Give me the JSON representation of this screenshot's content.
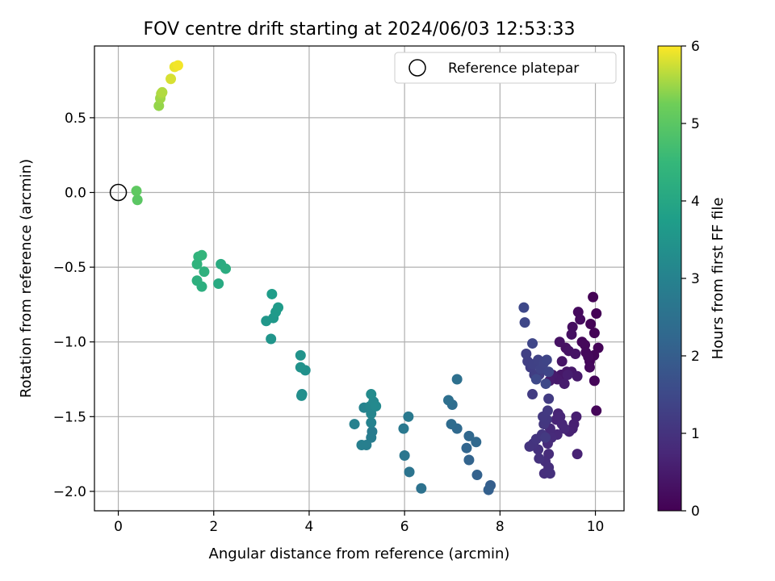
{
  "chart_data": {
    "type": "scatter",
    "title": "FOV centre drift starting at 2024/06/03 12:53:33",
    "xlabel": "Angular distance from reference (arcmin)",
    "ylabel": "Rotation from reference (arcmin)",
    "colorbar_label": "Hours from first FF file",
    "xlim": [
      -0.5,
      10.6
    ],
    "ylim": [
      -2.13,
      0.98
    ],
    "x_ticks": [
      0,
      2,
      4,
      6,
      8,
      10
    ],
    "x_tick_labels": [
      "0",
      "2",
      "4",
      "6",
      "8",
      "10"
    ],
    "y_ticks": [
      0.5,
      0.0,
      -0.5,
      -1.0,
      -1.5,
      -2.0
    ],
    "y_tick_labels": [
      "0.5",
      "0.0",
      "−0.5",
      "−1.0",
      "−1.5",
      "−2.0"
    ],
    "colorbar_range": [
      0,
      6
    ],
    "colorbar_ticks": [
      0,
      1,
      2,
      3,
      4,
      5,
      6
    ],
    "colorbar_tick_labels": [
      "0",
      "1",
      "2",
      "3",
      "4",
      "5",
      "6"
    ],
    "colormap": "viridis",
    "grid": true,
    "legend": {
      "position": "upper-right",
      "entries": [
        "Reference platepar"
      ]
    },
    "reference_point": {
      "x": 0.0,
      "y": 0.0,
      "label": "Reference platepar"
    },
    "points": [
      [
        9.95,
        -0.7,
        0.03
      ],
      [
        10.02,
        -0.81,
        0.04
      ],
      [
        9.9,
        -0.88,
        0.05
      ],
      [
        9.98,
        -0.94,
        0.05
      ],
      [
        10.06,
        -1.04,
        0.06
      ],
      [
        9.97,
        -1.09,
        0.07
      ],
      [
        9.88,
        -1.13,
        0.08
      ],
      [
        9.98,
        -1.26,
        0.09
      ],
      [
        10.02,
        -1.46,
        0.1
      ],
      [
        9.72,
        -1.0,
        0.12
      ],
      [
        9.78,
        -1.02,
        0.13
      ],
      [
        9.8,
        -1.07,
        0.14
      ],
      [
        9.85,
        -1.1,
        0.15
      ],
      [
        9.88,
        -1.17,
        0.16
      ],
      [
        9.64,
        -0.8,
        0.18
      ],
      [
        9.68,
        -0.85,
        0.2
      ],
      [
        9.52,
        -0.9,
        0.25
      ],
      [
        9.5,
        -0.95,
        0.28
      ],
      [
        9.38,
        -1.04,
        0.3
      ],
      [
        9.25,
        -1.0,
        0.32
      ],
      [
        9.44,
        -1.06,
        0.34
      ],
      [
        9.58,
        -1.08,
        0.36
      ],
      [
        9.3,
        -1.13,
        0.38
      ],
      [
        9.4,
        -1.2,
        0.4
      ],
      [
        9.28,
        -1.22,
        0.42
      ],
      [
        9.5,
        -1.2,
        0.44
      ],
      [
        9.62,
        -1.23,
        0.46
      ],
      [
        9.2,
        -1.25,
        0.48
      ],
      [
        9.1,
        -1.22,
        0.5
      ],
      [
        9.04,
        -1.26,
        0.52
      ],
      [
        9.35,
        -1.28,
        0.54
      ],
      [
        9.42,
        -1.22,
        0.56
      ],
      [
        9.6,
        -1.5,
        0.58
      ],
      [
        9.55,
        -1.55,
        0.6
      ],
      [
        9.52,
        -1.58,
        0.62
      ],
      [
        9.45,
        -1.6,
        0.64
      ],
      [
        9.62,
        -1.75,
        0.66
      ],
      [
        9.22,
        -1.48,
        0.68
      ],
      [
        9.18,
        -1.52,
        0.7
      ],
      [
        9.26,
        -1.5,
        0.72
      ],
      [
        9.3,
        -1.55,
        0.74
      ],
      [
        9.35,
        -1.58,
        0.76
      ],
      [
        9.2,
        -1.62,
        0.78
      ],
      [
        9.05,
        -1.58,
        0.8
      ],
      [
        9.08,
        -1.64,
        0.82
      ],
      [
        9.0,
        -1.68,
        0.84
      ],
      [
        9.02,
        -1.75,
        0.86
      ],
      [
        8.95,
        -1.8,
        0.88
      ],
      [
        9.02,
        -1.84,
        0.9
      ],
      [
        8.93,
        -1.88,
        0.92
      ],
      [
        9.05,
        -1.88,
        0.94
      ],
      [
        8.8,
        -1.72,
        0.96
      ],
      [
        8.82,
        -1.78,
        0.98
      ],
      [
        8.7,
        -1.68,
        1.0
      ],
      [
        8.62,
        -1.7,
        1.02
      ],
      [
        8.76,
        -1.65,
        1.04
      ],
      [
        8.88,
        -1.62,
        1.06
      ],
      [
        8.92,
        -1.55,
        1.08
      ],
      [
        8.98,
        -1.52,
        1.1
      ],
      [
        8.9,
        -1.5,
        1.12
      ],
      [
        9.0,
        -1.46,
        1.14
      ],
      [
        8.95,
        -1.64,
        1.16
      ],
      [
        9.02,
        -1.38,
        1.18
      ],
      [
        8.68,
        -1.35,
        1.2
      ],
      [
        8.82,
        -1.22,
        1.22
      ],
      [
        8.72,
        -1.22,
        1.24
      ],
      [
        8.64,
        -1.17,
        1.26
      ],
      [
        8.58,
        -1.13,
        1.28
      ],
      [
        8.55,
        -1.08,
        1.3
      ],
      [
        8.7,
        -1.15,
        1.32
      ],
      [
        8.8,
        -1.12,
        1.34
      ],
      [
        8.85,
        -1.18,
        1.36
      ],
      [
        8.92,
        -1.14,
        1.38
      ],
      [
        8.98,
        -1.12,
        1.4
      ],
      [
        9.02,
        -1.2,
        1.42
      ],
      [
        8.68,
        -1.01,
        1.44
      ],
      [
        8.52,
        -0.87,
        1.46
      ],
      [
        8.5,
        -0.77,
        1.48
      ],
      [
        8.76,
        -1.25,
        1.5
      ],
      [
        8.96,
        -1.28,
        1.52
      ],
      [
        7.8,
        -1.96,
        2.0
      ],
      [
        7.76,
        -1.99,
        2.05
      ],
      [
        7.52,
        -1.89,
        2.1
      ],
      [
        7.35,
        -1.79,
        2.15
      ],
      [
        7.3,
        -1.71,
        2.2
      ],
      [
        7.35,
        -1.63,
        2.25
      ],
      [
        7.5,
        -1.67,
        2.28
      ],
      [
        7.1,
        -1.58,
        2.32
      ],
      [
        6.98,
        -1.55,
        2.36
      ],
      [
        7.0,
        -1.42,
        2.4
      ],
      [
        6.92,
        -1.39,
        2.44
      ],
      [
        7.1,
        -1.25,
        2.48
      ],
      [
        6.35,
        -1.98,
        2.55
      ],
      [
        6.1,
        -1.87,
        2.6
      ],
      [
        6.0,
        -1.76,
        2.65
      ],
      [
        5.98,
        -1.58,
        2.7
      ],
      [
        6.08,
        -1.5,
        2.75
      ],
      [
        5.32,
        -1.6,
        2.8
      ],
      [
        5.3,
        -1.64,
        2.84
      ],
      [
        5.2,
        -1.69,
        2.88
      ],
      [
        5.1,
        -1.69,
        2.92
      ],
      [
        4.95,
        -1.55,
        2.96
      ],
      [
        5.3,
        -1.54,
        3.0
      ],
      [
        5.15,
        -1.44,
        3.04
      ],
      [
        5.3,
        -1.48,
        3.08
      ],
      [
        5.28,
        -1.43,
        3.12
      ],
      [
        5.35,
        -1.4,
        3.16
      ],
      [
        5.4,
        -1.43,
        3.2
      ],
      [
        5.3,
        -1.35,
        3.24
      ],
      [
        3.85,
        -1.35,
        3.3
      ],
      [
        3.84,
        -1.36,
        3.34
      ],
      [
        3.92,
        -1.19,
        3.38
      ],
      [
        3.82,
        -1.17,
        3.42
      ],
      [
        3.82,
        -1.09,
        3.46
      ],
      [
        3.2,
        -0.98,
        3.52
      ],
      [
        3.1,
        -0.86,
        3.56
      ],
      [
        3.25,
        -0.84,
        3.6
      ],
      [
        3.3,
        -0.8,
        3.64
      ],
      [
        3.35,
        -0.77,
        3.68
      ],
      [
        3.22,
        -0.68,
        3.72
      ],
      [
        2.1,
        -0.61,
        4.1
      ],
      [
        2.15,
        -0.48,
        4.14
      ],
      [
        2.25,
        -0.51,
        4.18
      ],
      [
        1.75,
        -0.63,
        4.22
      ],
      [
        1.65,
        -0.59,
        4.26
      ],
      [
        1.8,
        -0.53,
        4.3
      ],
      [
        1.65,
        -0.48,
        4.34
      ],
      [
        1.68,
        -0.43,
        4.38
      ],
      [
        1.75,
        -0.42,
        4.42
      ],
      [
        0.4,
        -0.05,
        5.0
      ],
      [
        0.38,
        0.01,
        5.05
      ],
      [
        0.85,
        0.58,
        5.45
      ],
      [
        0.88,
        0.63,
        5.5
      ],
      [
        0.9,
        0.66,
        5.55
      ],
      [
        0.92,
        0.67,
        5.6
      ],
      [
        1.1,
        0.76,
        5.8
      ],
      [
        1.18,
        0.84,
        5.9
      ],
      [
        1.25,
        0.85,
        5.95
      ]
    ]
  }
}
